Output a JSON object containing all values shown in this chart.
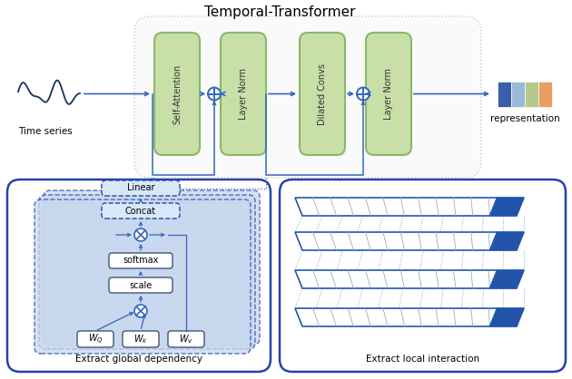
{
  "title": "Temporal-Transformer",
  "subtitle_left": "Extract global dependency",
  "subtitle_right": "Extract local interaction",
  "label_timeseries": "Time series",
  "label_representation": "representation",
  "boxes_top": [
    "Self-Attention",
    "Layer Norm",
    "Dilated Convs",
    "Layer Norm"
  ],
  "box_color_top": "#c8dfa8",
  "box_edge_top": "#8ab86a",
  "arrow_color": "#3366bb",
  "dashed_outer_edge": "#aaaaaa",
  "repr_colors": [
    "#3a5faa",
    "#9ab8d8",
    "#b5c98a",
    "#e8a060"
  ],
  "wave_color": "#1a3060",
  "bottom_border_color": "#2244aa",
  "band_dark": "#2255aa",
  "band_light": "#8aaecc",
  "diag_color": "#6688bb",
  "bg_blue": "#c8d8ee",
  "bg_blue2": "#b8ccee"
}
